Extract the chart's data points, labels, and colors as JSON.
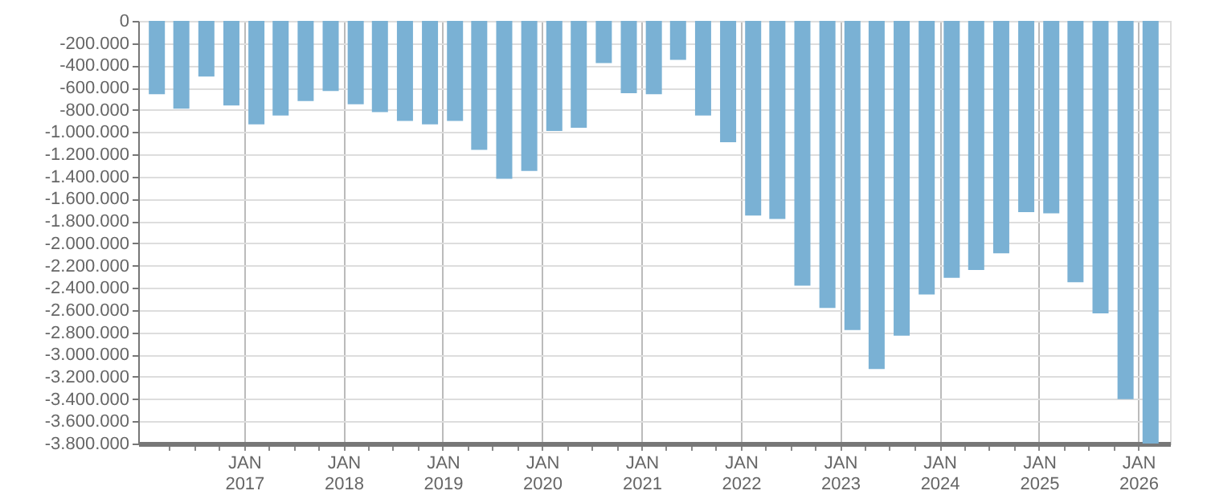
{
  "chart_data": {
    "type": "bar",
    "x": [
      "2016-02-15",
      "2016-05-15",
      "2016-08-15",
      "2016-11-15",
      "2017-02-15",
      "2017-05-15",
      "2017-08-15",
      "2017-11-15",
      "2018-02-15",
      "2018-05-15",
      "2018-08-15",
      "2018-11-15",
      "2019-02-15",
      "2019-05-15",
      "2019-08-15",
      "2019-11-15",
      "2020-02-15",
      "2020-05-15",
      "2020-08-15",
      "2020-11-15",
      "2021-02-15",
      "2021-05-15",
      "2021-08-15",
      "2021-11-15",
      "2022-02-15",
      "2022-05-15",
      "2022-08-15",
      "2022-11-15",
      "2023-02-15",
      "2023-05-15",
      "2023-08-15",
      "2023-11-15",
      "2024-02-15",
      "2024-05-15",
      "2024-08-15",
      "2024-11-15",
      "2025-02-15",
      "2025-05-15",
      "2025-08-15",
      "2025-11-15",
      "2026-02-15"
    ],
    "series": [
      {
        "color": "#7ab1d4",
        "values": [
          -660000,
          -790000,
          -500000,
          -760000,
          -930000,
          -850000,
          -720000,
          -630000,
          -750000,
          -820000,
          -900000,
          -930000,
          -900000,
          -1160000,
          -1420000,
          -1350000,
          -990000,
          -960000,
          -380000,
          -650000,
          -660000,
          -350000,
          -850000,
          -1090000,
          -1750000,
          -1780000,
          -2380000,
          -2580000,
          -2780000,
          -3130000,
          -2830000,
          -2460000,
          -2310000,
          -2240000,
          -2090000,
          -1720000,
          -1730000,
          -2350000,
          -2630000,
          -3400000,
          -3800000
        ]
      }
    ],
    "ylim": [
      -3800000,
      0
    ],
    "yticks": [
      0,
      {
        "value": -200000,
        "label": "-200.000"
      },
      {
        "value": -400000,
        "label": "-400.000"
      },
      {
        "value": -600000,
        "label": "-600.000"
      },
      {
        "value": -800000,
        "label": "-800.000"
      },
      {
        "value": -1000000,
        "label": "-1.000.000"
      },
      {
        "value": -1200000,
        "label": "-1.200.000"
      },
      {
        "value": -1400000,
        "label": "-1.400.000"
      },
      {
        "value": -1600000,
        "label": "-1.600.000"
      },
      {
        "value": -1800000,
        "label": "-1.800.000"
      },
      {
        "value": -2000000,
        "label": "-2.000.000"
      },
      {
        "value": -2200000,
        "label": "-2.200.000"
      },
      {
        "value": -2400000,
        "label": "-2.400.000"
      },
      {
        "value": -2600000,
        "label": "-2.600.000"
      },
      {
        "value": -2800000,
        "label": "-2.800.000"
      },
      {
        "value": -3000000,
        "label": "-3.000.000"
      },
      {
        "value": -3200000,
        "label": "-3.200.000"
      },
      {
        "value": -3400000,
        "label": "-3.400.000"
      },
      {
        "value": -3600000,
        "label": "-3.600.000"
      },
      {
        "value": -3800000,
        "label": "-3.800.000"
      }
    ],
    "xlim": [
      "2016-01-07",
      "2026-03-29"
    ],
    "xticks": [
      {
        "value": "2016-04-01",
        "label": null
      },
      {
        "value": "2016-07-01",
        "label": null
      },
      {
        "value": "2016-10-01",
        "label": null
      },
      {
        "value": "2017-01-01",
        "label": "JAN\n2017"
      },
      {
        "value": "2017-04-01",
        "label": null
      },
      {
        "value": "2017-07-01",
        "label": null
      },
      {
        "value": "2017-10-01",
        "label": null
      },
      {
        "value": "2018-01-01",
        "label": "JAN\n2018"
      },
      {
        "value": "2018-04-01",
        "label": null
      },
      {
        "value": "2018-07-01",
        "label": null
      },
      {
        "value": "2018-10-01",
        "label": null
      },
      {
        "value": "2019-01-01",
        "label": "JAN\n2019"
      },
      {
        "value": "2019-04-01",
        "label": null
      },
      {
        "value": "2019-07-01",
        "label": null
      },
      {
        "value": "2019-10-01",
        "label": null
      },
      {
        "value": "2020-01-01",
        "label": "JAN\n2020"
      },
      {
        "value": "2020-04-01",
        "label": null
      },
      {
        "value": "2020-07-01",
        "label": null
      },
      {
        "value": "2020-10-01",
        "label": null
      },
      {
        "value": "2021-01-01",
        "label": "JAN\n2021"
      },
      {
        "value": "2021-04-01",
        "label": null
      },
      {
        "value": "2021-07-01",
        "label": null
      },
      {
        "value": "2021-10-01",
        "label": null
      },
      {
        "value": "2022-01-01",
        "label": "JAN\n2022"
      },
      {
        "value": "2022-04-01",
        "label": null
      },
      {
        "value": "2022-07-01",
        "label": null
      },
      {
        "value": "2022-10-01",
        "label": null
      },
      {
        "value": "2023-01-01",
        "label": "JAN\n2023"
      },
      {
        "value": "2023-04-01",
        "label": null
      },
      {
        "value": "2023-07-01",
        "label": null
      },
      {
        "value": "2023-10-01",
        "label": null
      },
      {
        "value": "2024-01-01",
        "label": "JAN\n2024"
      },
      {
        "value": "2024-04-01",
        "label": null
      },
      {
        "value": "2024-07-01",
        "label": null
      },
      {
        "value": "2024-10-01",
        "label": null
      },
      {
        "value": "2025-01-01",
        "label": "JAN\n2025"
      },
      {
        "value": "2025-04-01",
        "label": null
      },
      {
        "value": "2025-07-01",
        "label": null
      },
      {
        "value": "2025-10-01",
        "label": null
      },
      {
        "value": "2026-01-01",
        "label": "JAN\n2026"
      }
    ],
    "grid": true
  }
}
